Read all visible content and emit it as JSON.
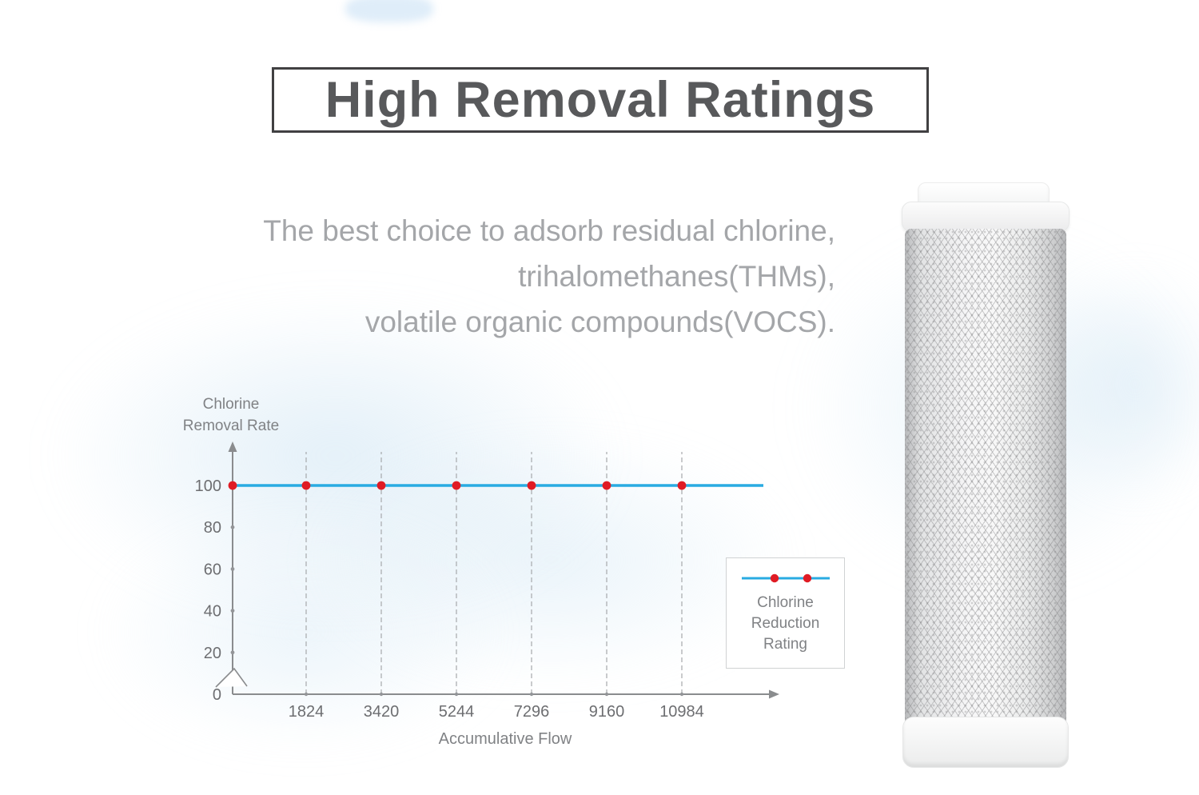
{
  "page": {
    "title": "High Removal Ratings",
    "subtitle_lines": [
      "The best choice to adsorb residual chlorine,",
      "trihalomethanes(THMs),",
      "volatile organic compounds(VOCS)."
    ]
  },
  "chart_data": {
    "type": "line",
    "title": "",
    "ylabel": "Chlorine Removal Rate",
    "ylabel_lines": [
      "Chlorine",
      "Removal Rate"
    ],
    "xlabel": "Accumulative Flow",
    "x_ticks": [
      "1824",
      "3420",
      "5244",
      "7296",
      "9160",
      "10984"
    ],
    "y_ticks": [
      "0",
      "20",
      "40",
      "60",
      "80",
      "100"
    ],
    "ylim": [
      0,
      110
    ],
    "grid": "dashed-vertical",
    "axis_break_on_y": true,
    "series": [
      {
        "name": "Chlorine Reduction Rating",
        "x": [
          0,
          1824,
          3420,
          5244,
          7296,
          9160,
          10984
        ],
        "values": [
          100,
          100,
          100,
          100,
          100,
          100,
          100
        ],
        "line_color": "#29abe2",
        "marker": "circle",
        "marker_color": "#e01b24"
      }
    ],
    "legend": {
      "position": "right",
      "label_lines": [
        "Chlorine",
        "Reduction",
        "Rating"
      ]
    }
  }
}
